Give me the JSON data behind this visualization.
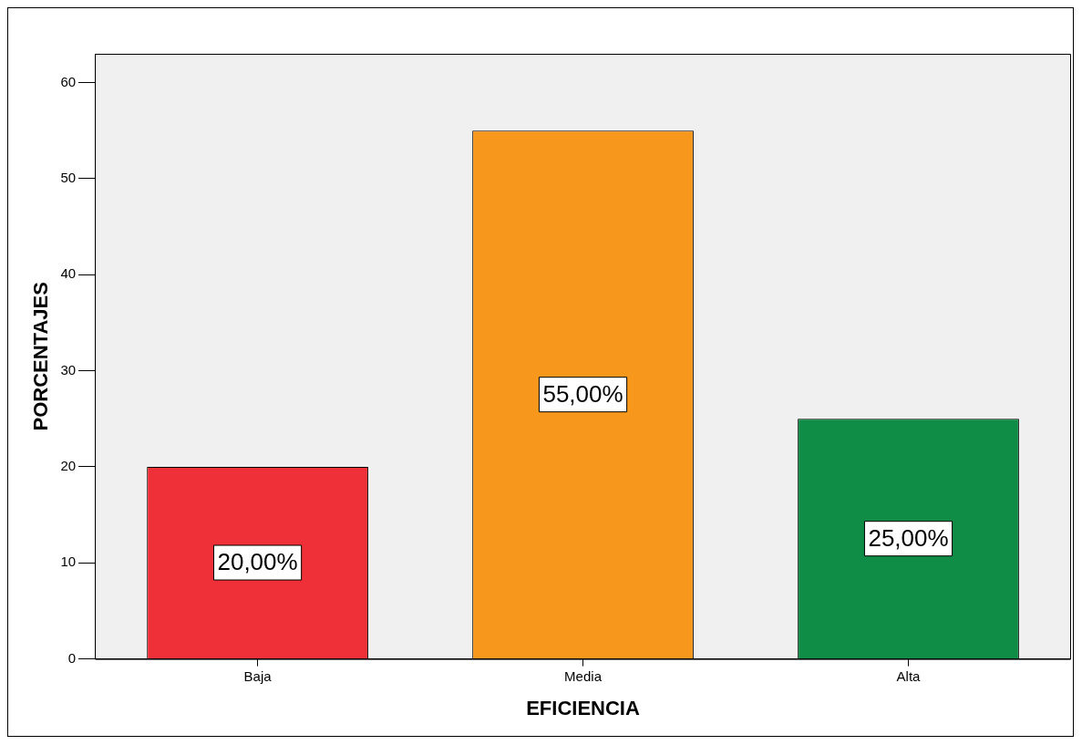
{
  "chart_data": {
    "type": "bar",
    "xlabel": "EFICIENCIA",
    "ylabel": "PORCENTAJES",
    "categories": [
      "Baja",
      "Media",
      "Alta"
    ],
    "values": [
      20,
      55,
      25
    ],
    "colors": [
      "#ef3038",
      "#f7981d",
      "#0f8c46"
    ],
    "value_labels": [
      "20,00%",
      "55,00%",
      "25,00%"
    ],
    "ylim": [
      0,
      63
    ],
    "yticks": [
      0,
      10,
      20,
      30,
      40,
      50,
      60
    ],
    "grid": false,
    "legend": false
  }
}
